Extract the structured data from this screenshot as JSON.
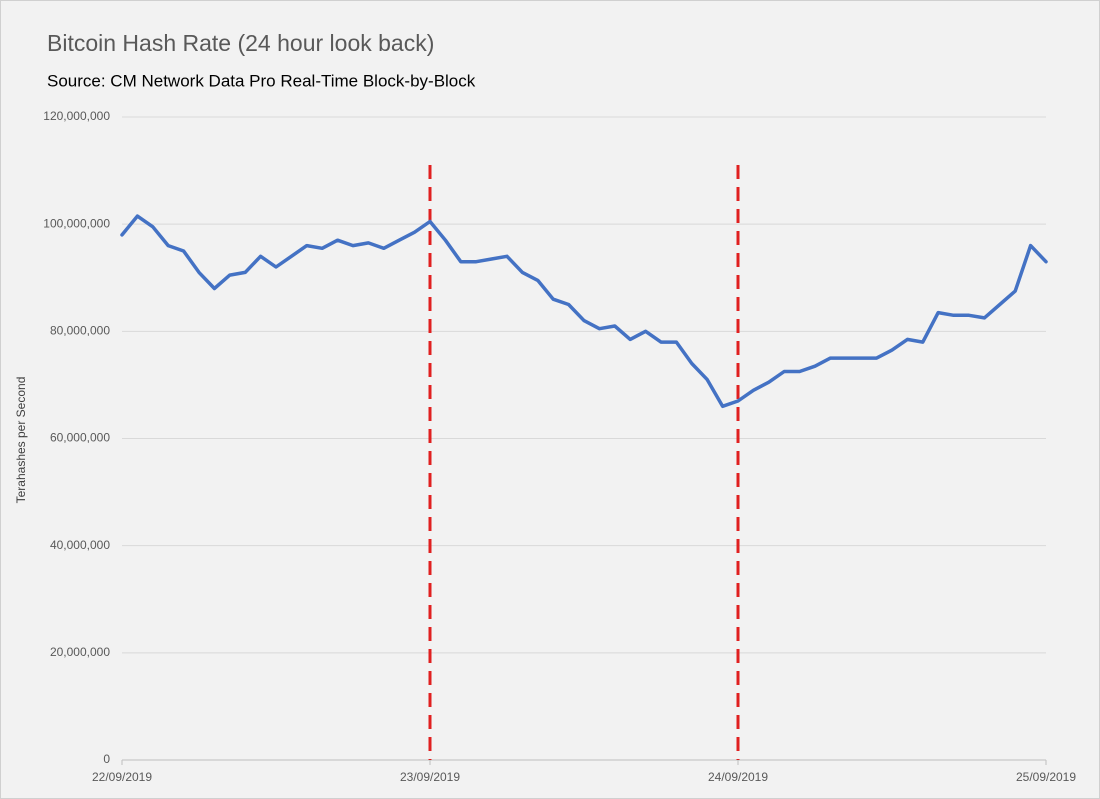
{
  "chart_data": {
    "type": "line",
    "title": "Bitcoin Hash Rate (24 hour look back)",
    "subtitle": "Source: CM Network Data Pro Real-Time Block-by-Block",
    "y_label": "Terahashes per Second",
    "categories": [
      "22/09/2019",
      null,
      null,
      null,
      null,
      null,
      null,
      null,
      null,
      null,
      null,
      null,
      null,
      null,
      null,
      null,
      null,
      null,
      null,
      null,
      "23/09/2019",
      null,
      null,
      null,
      null,
      null,
      null,
      null,
      null,
      null,
      null,
      null,
      null,
      null,
      null,
      null,
      null,
      null,
      null,
      null,
      "24/09/2019",
      null,
      null,
      null,
      null,
      null,
      null,
      null,
      null,
      null,
      null,
      null,
      null,
      null,
      null,
      null,
      null,
      null,
      null,
      null,
      "25/09/2019"
    ],
    "values": [
      98000000,
      101500000,
      99500000,
      96000000,
      95000000,
      91000000,
      88000000,
      90500000,
      91000000,
      94000000,
      92000000,
      94000000,
      96000000,
      95500000,
      97000000,
      96000000,
      96500000,
      95500000,
      97000000,
      98500000,
      100500000,
      97000000,
      93000000,
      93000000,
      93500000,
      94000000,
      91000000,
      89500000,
      86000000,
      85000000,
      82000000,
      80500000,
      81000000,
      78500000,
      80000000,
      78000000,
      78000000,
      74000000,
      71000000,
      66000000,
      67000000,
      69000000,
      70500000,
      72500000,
      72500000,
      73500000,
      75000000,
      75000000,
      75000000,
      75000000,
      76500000,
      78500000,
      78000000,
      83500000,
      83000000,
      83000000,
      82500000,
      85000000,
      87500000,
      96000000,
      93000000
    ],
    "color": "#4472c4",
    "vline_color": "#e02020",
    "ylim": [
      0,
      120000000
    ],
    "yticks": [
      0,
      {
        "value": 20000000,
        "label": "20,000,000"
      },
      {
        "value": 40000000,
        "label": "40,000,000"
      },
      {
        "value": 60000000,
        "label": "60,000,000"
      },
      {
        "value": 80000000,
        "label": "80,000,000"
      },
      {
        "value": 100000000,
        "label": "100,000,000"
      },
      {
        "value": 120000000,
        "label": "120,000,000"
      }
    ],
    "grid": true
  }
}
